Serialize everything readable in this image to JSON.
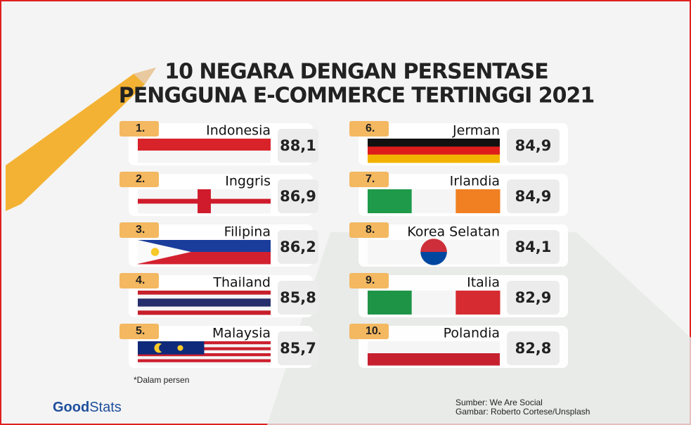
{
  "header": {
    "title_line1": "10 NEGARA DENGAN PERSENTASE",
    "title_line2": "PENGGUNA E-COMMERCE TERTINGGI 2021"
  },
  "items": [
    {
      "rank": "1.",
      "country": "Indonesia",
      "value": "88,1"
    },
    {
      "rank": "2.",
      "country": "Inggris",
      "value": "86,9"
    },
    {
      "rank": "3.",
      "country": "Filipina",
      "value": "86,2"
    },
    {
      "rank": "4.",
      "country": "Thailand",
      "value": "85,8"
    },
    {
      "rank": "5.",
      "country": "Malaysia",
      "value": "85,7"
    },
    {
      "rank": "6.",
      "country": "Jerman",
      "value": "84,9"
    },
    {
      "rank": "7.",
      "country": "Irlandia",
      "value": "84,9"
    },
    {
      "rank": "8.",
      "country": "Korea Selatan",
      "value": "84,1"
    },
    {
      "rank": "9.",
      "country": "Italia",
      "value": "82,9"
    },
    {
      "rank": "10.",
      "country": "Polandia",
      "value": "82,8"
    }
  ],
  "footnote": "*Dalam persen",
  "logo": {
    "part1": "Good",
    "part2": "Stats"
  },
  "source": {
    "line1": "Sumber: We Are Social",
    "line2": "Gambar: Roberto Cortese/Unsplash"
  }
}
